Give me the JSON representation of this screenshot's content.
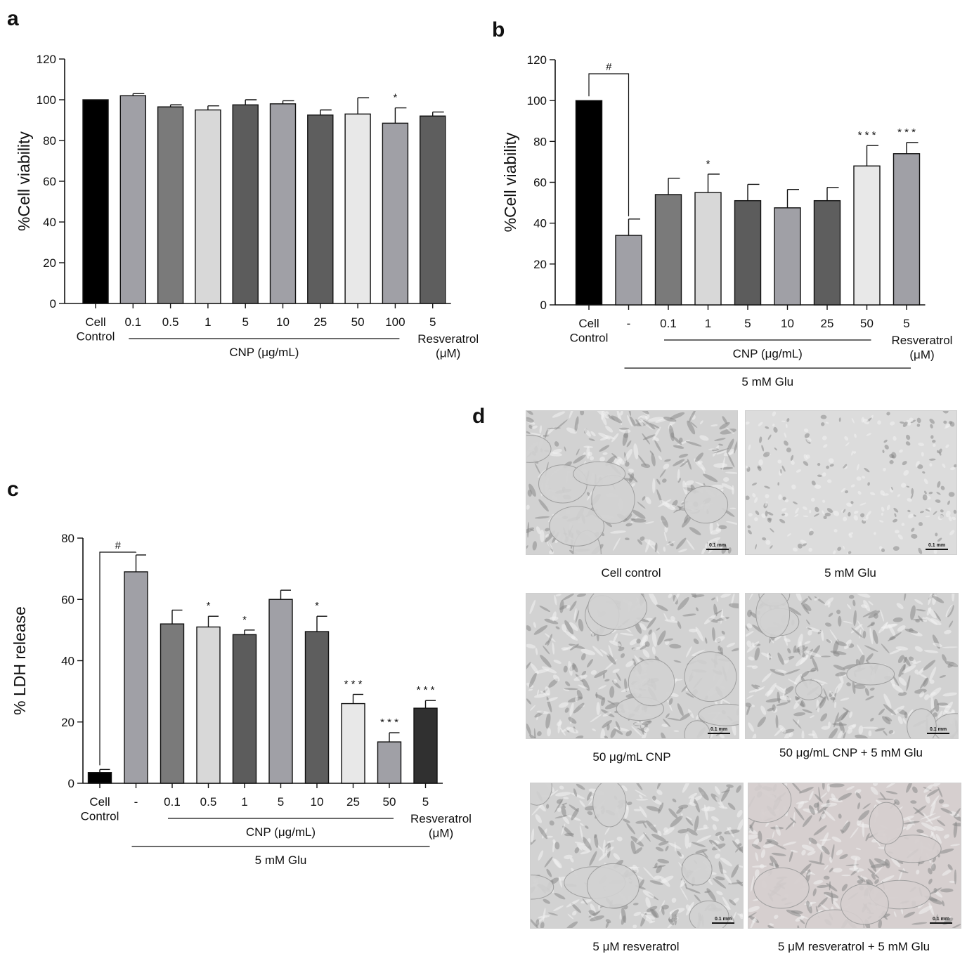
{
  "panels": {
    "a": "a",
    "b": "b",
    "c": "c",
    "d": "d"
  },
  "chart_data": [
    {
      "id": "a",
      "type": "bar",
      "ylabel": "%Cell viability",
      "ylim": [
        0,
        120
      ],
      "yticks": [
        0,
        20,
        40,
        60,
        80,
        100,
        120
      ],
      "categories": [
        "Cell\nControl",
        "0.1",
        "0.5",
        "1",
        "5",
        "10",
        "25",
        "50",
        "100",
        "5"
      ],
      "values": [
        100,
        102,
        96.5,
        95,
        97.5,
        98,
        92.5,
        93,
        88.5,
        92
      ],
      "errors": [
        0,
        1,
        1,
        2,
        2.5,
        1.5,
        2.5,
        8,
        7.5,
        2
      ],
      "colors": [
        "#000000",
        "#a0a0a6",
        "#7a7a7a",
        "#d8d8d8",
        "#5c5c5c",
        "#a0a0a6",
        "#5e5e5e",
        "#e8e8e8",
        "#a0a0a6",
        "#5e5e5e"
      ],
      "significance": [
        "",
        "",
        "",
        "",
        "",
        "",
        "",
        "",
        "*",
        ""
      ],
      "groups": [
        {
          "label": "CNP (μg/mL)",
          "from": 1,
          "to": 8,
          "row": 1
        }
      ],
      "extra_label": {
        "index": 9,
        "text": "Resveratrol\n(μM)"
      }
    },
    {
      "id": "b",
      "type": "bar",
      "ylabel": "%Cell viability",
      "ylim": [
        0,
        120
      ],
      "yticks": [
        0,
        20,
        40,
        60,
        80,
        100,
        120
      ],
      "categories": [
        "Cell\nControl",
        "-",
        "0.1",
        "1",
        "5",
        "10",
        "25",
        "50",
        "5"
      ],
      "values": [
        100,
        34,
        54,
        55,
        51,
        47.5,
        51,
        68,
        74
      ],
      "errors": [
        0,
        8,
        8,
        9,
        8,
        9,
        6.5,
        10,
        5.5
      ],
      "colors": [
        "#000000",
        "#a0a0a6",
        "#7a7a7a",
        "#d8d8d8",
        "#5c5c5c",
        "#a0a0a6",
        "#5e5e5e",
        "#e8e8e8",
        "#a0a0a6"
      ],
      "significance": [
        "",
        "",
        "",
        "*",
        "",
        "",
        "",
        "***",
        "***"
      ],
      "bracket": {
        "from": 0,
        "to": 1,
        "label": "#"
      },
      "groups": [
        {
          "label": "CNP (μg/mL)",
          "from": 2,
          "to": 7,
          "row": 1
        },
        {
          "label": "5 mM Glu",
          "from": 1,
          "to": 8,
          "row": 2
        }
      ],
      "extra_label": {
        "index": 8,
        "text": "Resveratrol\n(μM)"
      }
    },
    {
      "id": "c",
      "type": "bar",
      "ylabel": "% LDH release",
      "ylim": [
        0,
        80
      ],
      "yticks": [
        0,
        20,
        40,
        60,
        80
      ],
      "categories": [
        "Cell\nControl",
        "-",
        "0.1",
        "0.5",
        "1",
        "5",
        "10",
        "25",
        "50",
        "5"
      ],
      "values": [
        3.5,
        69,
        52,
        51,
        48.5,
        60,
        49.5,
        26,
        13.5,
        24.5
      ],
      "errors": [
        1,
        5.5,
        4.5,
        3.5,
        1.5,
        3,
        5,
        3,
        3,
        2.5
      ],
      "colors": [
        "#000000",
        "#a0a0a6",
        "#7a7a7a",
        "#d8d8d8",
        "#5c5c5c",
        "#a0a0a6",
        "#5e5e5e",
        "#e8e8e8",
        "#a0a0a6",
        "#303030"
      ],
      "significance": [
        "",
        "",
        "",
        "*",
        "*",
        "",
        "*",
        "***",
        "***",
        "***"
      ],
      "bracket": {
        "from": 0,
        "to": 1,
        "label": "#"
      },
      "groups": [
        {
          "label": "CNP (μg/mL)",
          "from": 2,
          "to": 8,
          "row": 1
        },
        {
          "label": "5 mM Glu",
          "from": 1,
          "to": 9,
          "row": 2
        }
      ],
      "extra_label": {
        "index": 9,
        "text": "Resveratrol\n(μM)"
      }
    }
  ],
  "micrographs": {
    "scale_label": "0.1 mm",
    "items": [
      {
        "caption": "Cell control"
      },
      {
        "caption": "5 mM Glu"
      },
      {
        "caption": "50 μg/mL CNP"
      },
      {
        "caption": "50 μg/mL CNP + 5 mM Glu"
      },
      {
        "caption": "5 μM resveratrol"
      },
      {
        "caption": "5 μM resveratrol + 5 mM Glu"
      }
    ]
  }
}
